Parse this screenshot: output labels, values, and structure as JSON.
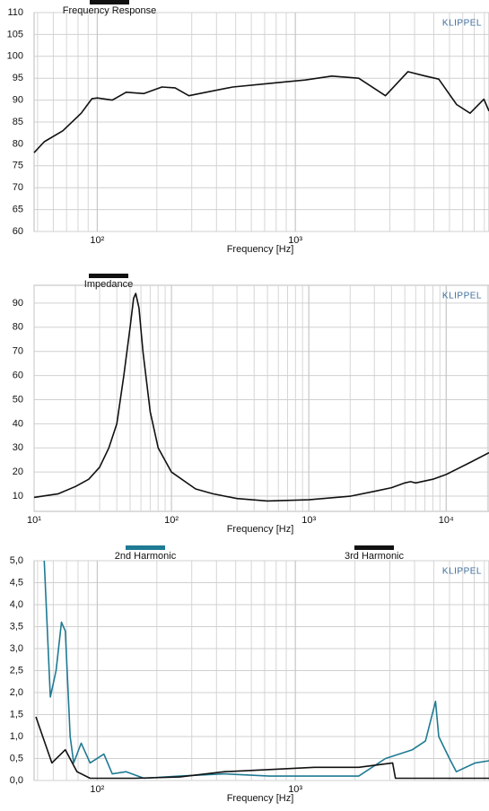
{
  "chart_data": [
    {
      "type": "line",
      "xscale": "log",
      "grid": true,
      "minor_grid": true,
      "annotation": "KLIPPEL",
      "x_label": "Frequency  [Hz]",
      "xlim": [
        48,
        9500
      ],
      "xticks": [
        {
          "value": 100,
          "label": "10²"
        },
        {
          "value": 1000,
          "label": "10³"
        }
      ],
      "ylim": [
        60,
        110
      ],
      "yticks": [
        60,
        65,
        70,
        75,
        80,
        85,
        90,
        95,
        100,
        105,
        110
      ],
      "series": [
        {
          "name": "Frequency Response",
          "color": "#111111",
          "x": [
            48,
            54,
            67,
            83,
            94,
            100,
            119,
            140,
            172,
            212,
            247,
            290,
            355,
            483,
            735,
            910,
            1120,
            1530,
            2090,
            2850,
            3700,
            4540,
            5300,
            6520,
            7620,
            8950,
            9500
          ],
          "values": [
            78,
            80.5,
            83,
            87,
            90.3,
            90.5,
            90,
            91.8,
            91.5,
            93,
            92.8,
            91,
            91.8,
            93,
            93.8,
            94.2,
            94.6,
            95.5,
            95,
            91,
            96.5,
            95.5,
            94.8,
            89,
            87,
            90.2,
            87.5
          ]
        }
      ]
    },
    {
      "type": "line",
      "xscale": "log",
      "grid": true,
      "minor_grid": true,
      "annotation": "KLIPPEL",
      "x_label": "Frequency  [Hz]",
      "xlim": [
        10,
        20500
      ],
      "xticks": [
        {
          "value": 10,
          "label": "10¹"
        },
        {
          "value": 100,
          "label": "10²"
        },
        {
          "value": 1000,
          "label": "10³"
        },
        {
          "value": 10000,
          "label": "10⁴"
        }
      ],
      "ylim": [
        3.7,
        97.4
      ],
      "yticks": [
        10,
        20,
        30,
        40,
        50,
        60,
        70,
        80,
        90
      ],
      "series": [
        {
          "name": "Impedance",
          "color": "#111111",
          "x": [
            10,
            15,
            20,
            25,
            30,
            35,
            40,
            45,
            50,
            53,
            55,
            58,
            62,
            70,
            80,
            100,
            150,
            200,
            300,
            500,
            1000,
            2000,
            3000,
            4000,
            5000,
            5500,
            6000,
            8000,
            10000,
            15000,
            20500
          ],
          "values": [
            9.5,
            11,
            14,
            17,
            22,
            30,
            40,
            60,
            80,
            92,
            94,
            88,
            70,
            45,
            30,
            20,
            13,
            11,
            9,
            8,
            8.5,
            10,
            12,
            13.5,
            15.5,
            16,
            15.5,
            17,
            19,
            24,
            28
          ]
        }
      ]
    },
    {
      "type": "line",
      "xscale": "log",
      "grid": true,
      "minor_grid": true,
      "annotation": "KLIPPEL",
      "x_label": "Frequency  [Hz]",
      "xlim": [
        48,
        9500
      ],
      "xticks": [
        {
          "value": 100,
          "label": "10²"
        },
        {
          "value": 1000,
          "label": "10³"
        }
      ],
      "ylim": [
        0,
        5
      ],
      "yticks": [
        {
          "value": 0,
          "label": "0,0"
        },
        {
          "value": 0.5,
          "label": "0,5"
        },
        {
          "value": 1,
          "label": "1,0"
        },
        {
          "value": 1.5,
          "label": "1,5"
        },
        {
          "value": 2,
          "label": "2,0"
        },
        {
          "value": 2.5,
          "label": "2,5"
        },
        {
          "value": 3,
          "label": "3,0"
        },
        {
          "value": 3.5,
          "label": "3,5"
        },
        {
          "value": 4,
          "label": "4,0"
        },
        {
          "value": 4.5,
          "label": "4,5"
        },
        {
          "value": 5,
          "label": "5,0"
        }
      ],
      "series": [
        {
          "name": "2nd Harmonic",
          "color": "#1f7a93",
          "x": [
            54,
            58,
            62,
            66,
            69,
            73,
            76,
            83,
            92,
            108,
            119,
            140,
            172,
            260,
            440,
            740,
            1250,
            2090,
            2850,
            3900,
            4540,
            5100,
            5300,
            6000,
            6500,
            8100,
            9500
          ],
          "values": [
            5.0,
            1.9,
            2.5,
            3.6,
            3.4,
            1.0,
            0.4,
            0.85,
            0.4,
            0.6,
            0.15,
            0.2,
            0.05,
            0.1,
            0.15,
            0.1,
            0.1,
            0.1,
            0.5,
            0.7,
            0.9,
            1.8,
            1.0,
            0.5,
            0.2,
            0.4,
            0.45
          ]
        },
        {
          "name": "3rd Harmonic",
          "color": "#111111",
          "x": [
            49,
            54,
            59,
            69,
            79,
            92,
            155,
            260,
            440,
            740,
            1250,
            2090,
            3100,
            3200,
            6000,
            9500
          ],
          "values": [
            1.45,
            0.9,
            0.4,
            0.7,
            0.2,
            0.05,
            0.05,
            0.08,
            0.2,
            0.25,
            0.3,
            0.3,
            0.4,
            0.05,
            0.05,
            0.05
          ]
        }
      ]
    }
  ]
}
